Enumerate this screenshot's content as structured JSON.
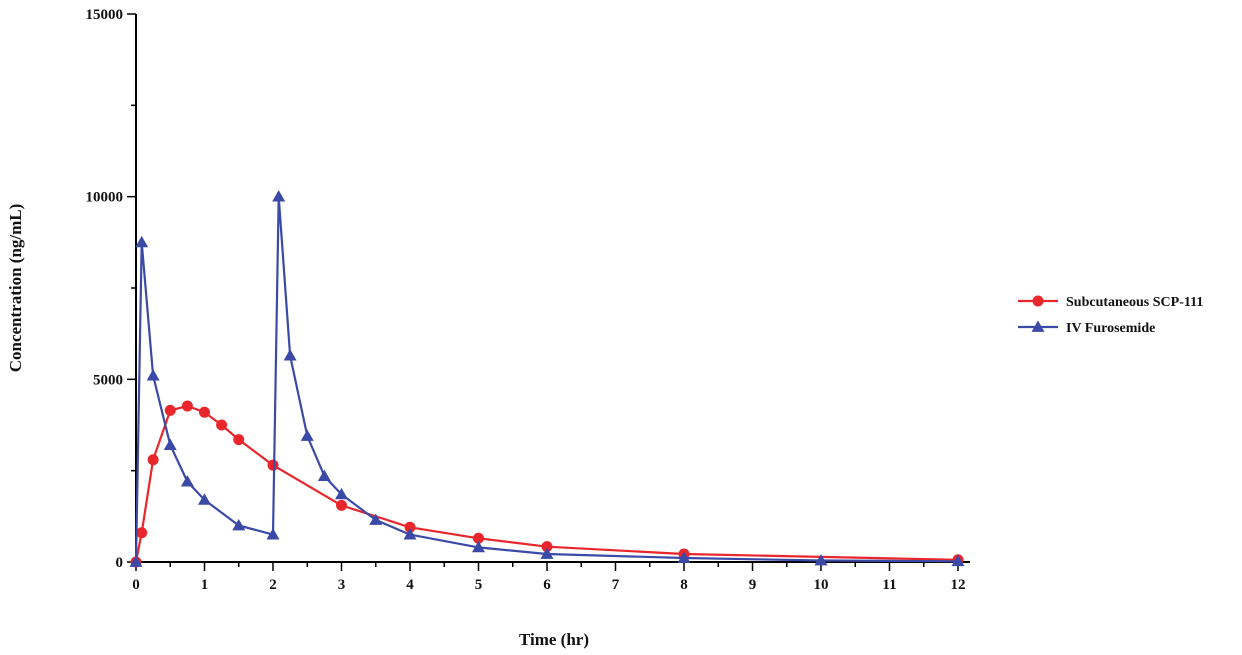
{
  "chart_data": {
    "type": "line",
    "title": "",
    "xlabel": "Time (hr)",
    "ylabel": "Concentration (ng/mL)",
    "xlim": [
      0,
      12
    ],
    "ylim": [
      0,
      15000
    ],
    "x_ticks": [
      0,
      1,
      2,
      3,
      4,
      5,
      6,
      7,
      8,
      9,
      10,
      11,
      12
    ],
    "x_tick_labels": [
      "0",
      "1",
      "2",
      "3",
      "4",
      "5",
      "6",
      "7",
      "8",
      "9",
      "10",
      "11",
      "12"
    ],
    "y_ticks": [
      0,
      5000,
      10000,
      15000
    ],
    "y_tick_labels": [
      "0",
      "5000",
      "10000",
      "15000"
    ],
    "grid": false,
    "legend_position": "right",
    "series": [
      {
        "name": "Subcutaneous SCP-111",
        "color": "#e8262b",
        "marker": "circle",
        "x": [
          0,
          0.083,
          0.25,
          0.5,
          0.75,
          1,
          1.25,
          1.5,
          2,
          3,
          4,
          5,
          6,
          8,
          12
        ],
        "y": [
          0,
          800,
          2800,
          4150,
          4270,
          4100,
          3750,
          3350,
          2650,
          1550,
          950,
          650,
          420,
          220,
          60
        ]
      },
      {
        "name": "IV Furosemide",
        "color": "#3a4aa6",
        "marker": "triangle",
        "x": [
          0,
          0.083,
          0.25,
          0.5,
          0.75,
          1,
          1.5,
          2,
          2.083,
          2.25,
          2.5,
          2.75,
          3,
          3.5,
          4,
          5,
          6,
          8,
          10,
          12
        ],
        "y": [
          0,
          8750,
          5100,
          3200,
          2200,
          1700,
          1000,
          750,
          10000,
          5650,
          3450,
          2350,
          1850,
          1150,
          750,
          400,
          220,
          110,
          40,
          20
        ]
      }
    ]
  }
}
